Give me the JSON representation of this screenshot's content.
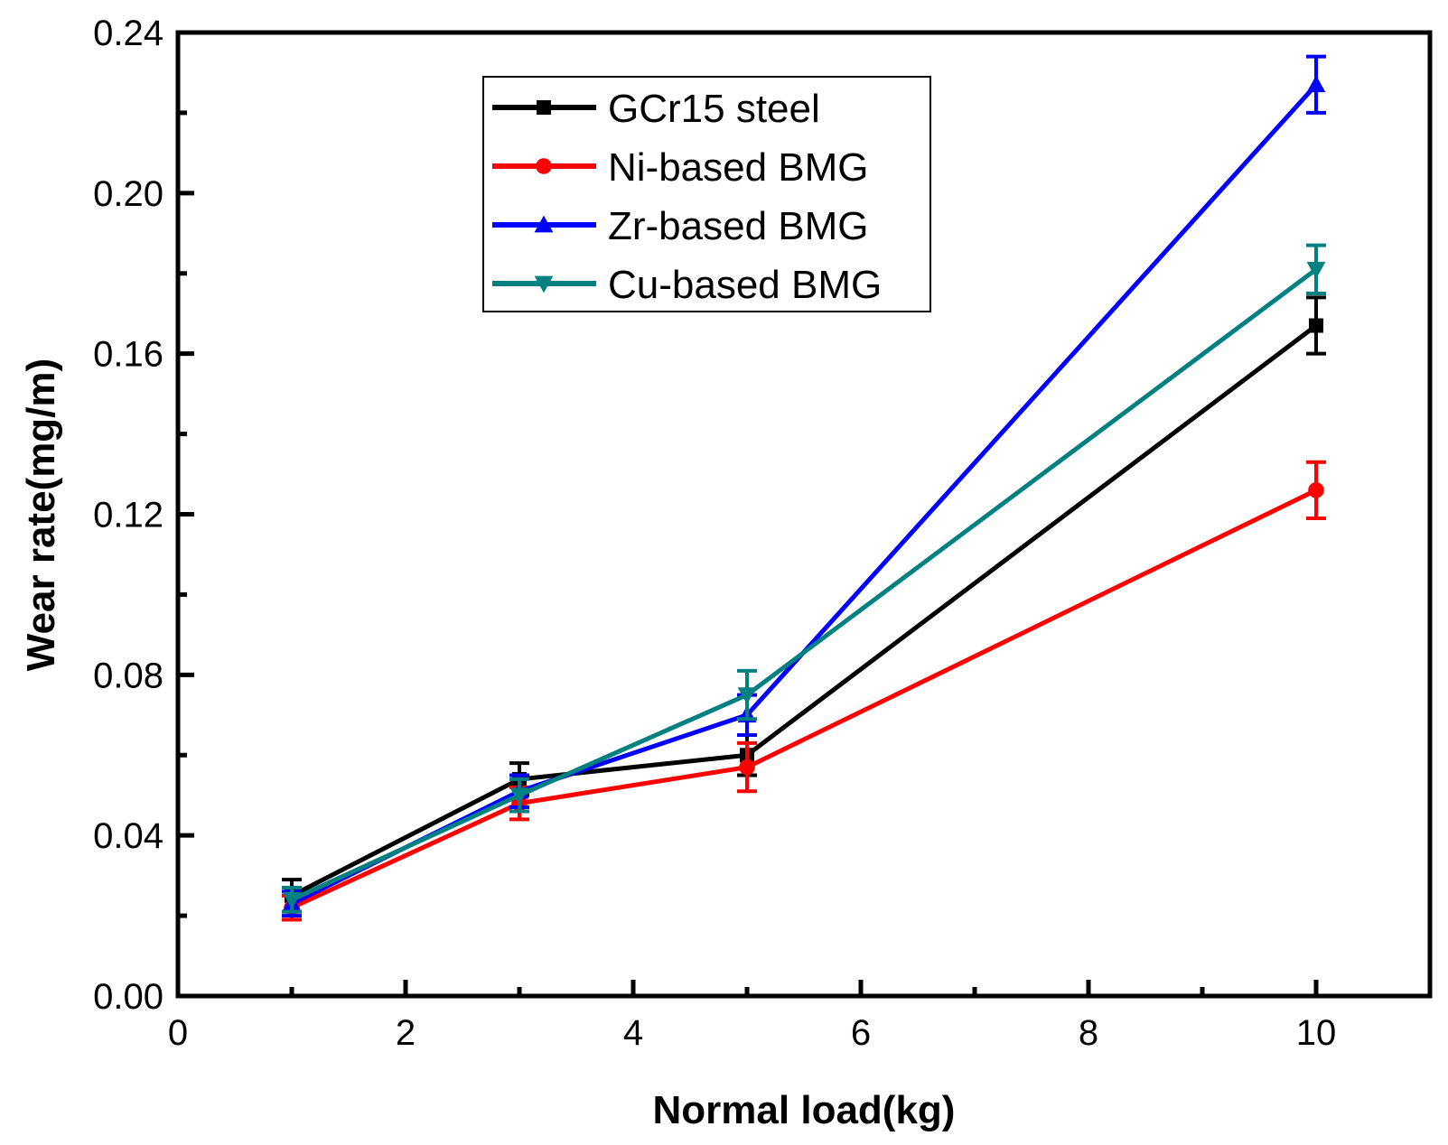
{
  "chart_data": {
    "type": "line",
    "title": "",
    "xlabel": "Normal load(kg)",
    "ylabel": "Wear rate(mg/m)",
    "xlim": [
      0,
      11
    ],
    "ylim": [
      0,
      0.24
    ],
    "x_ticks": [
      "0",
      "2",
      "4",
      "6",
      "8",
      "10"
    ],
    "y_ticks": [
      "0.00",
      "0.04",
      "0.08",
      "0.12",
      "0.16",
      "0.20",
      "0.24"
    ],
    "grid": false,
    "legend_position": "top-center",
    "x": [
      1,
      3,
      5,
      10
    ],
    "series": [
      {
        "name": "GCr15 steel",
        "color": "#000000",
        "marker": "square",
        "values": [
          0.025,
          0.054,
          0.06,
          0.167
        ],
        "errors": [
          0.004,
          0.004,
          0.005,
          0.007
        ]
      },
      {
        "name": "Ni-based BMG",
        "color": "#ff0000",
        "marker": "circle",
        "values": [
          0.022,
          0.048,
          0.057,
          0.126
        ],
        "errors": [
          0.003,
          0.004,
          0.006,
          0.007
        ]
      },
      {
        "name": "Zr-based BMG",
        "color": "#0000ff",
        "marker": "triangle-up",
        "values": [
          0.023,
          0.051,
          0.07,
          0.227
        ],
        "errors": [
          0.003,
          0.004,
          0.005,
          0.007
        ]
      },
      {
        "name": "Cu-based BMG",
        "color": "#008080",
        "marker": "triangle-down",
        "values": [
          0.024,
          0.05,
          0.075,
          0.181
        ],
        "errors": [
          0.003,
          0.004,
          0.006,
          0.006
        ]
      }
    ]
  }
}
